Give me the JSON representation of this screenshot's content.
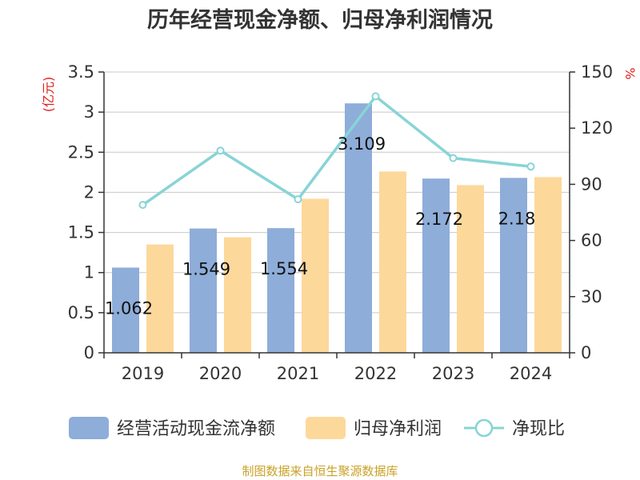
{
  "chart_data": {
    "type": "bar",
    "title": "历年经营现金净额、归母净利润情况",
    "categories": [
      "2019",
      "2020",
      "2021",
      "2022",
      "2023",
      "2024"
    ],
    "series": [
      {
        "name": "经营活动现金流净额",
        "kind": "bar",
        "axis": "left",
        "color": "#8eadd9",
        "values": [
          1.062,
          1.549,
          1.554,
          3.109,
          2.172,
          2.18
        ],
        "labels": [
          "1.062",
          "1.549",
          "1.554",
          "3.109",
          "2.172",
          "2.18"
        ]
      },
      {
        "name": "归母净利润",
        "kind": "bar",
        "axis": "left",
        "color": "#fdd89b",
        "values": [
          1.35,
          1.44,
          1.92,
          2.26,
          2.09,
          2.19
        ]
      },
      {
        "name": "净现比",
        "kind": "line",
        "axis": "right",
        "color": "#88d4d6",
        "values": [
          79,
          108,
          82,
          137,
          104,
          99.5
        ]
      }
    ],
    "y_left": {
      "unit": "(亿元)",
      "min": 0,
      "max": 3.5,
      "ticks": [
        "0",
        "0.5",
        "1",
        "1.5",
        "2",
        "2.5",
        "3",
        "3.5"
      ]
    },
    "y_right": {
      "unit": "%",
      "min": 0,
      "max": 150,
      "ticks": [
        "0",
        "30",
        "60",
        "90",
        "120",
        "150"
      ]
    },
    "grid": true,
    "legend_position": "bottom"
  },
  "source": "制图数据来自恒生聚源数据库"
}
